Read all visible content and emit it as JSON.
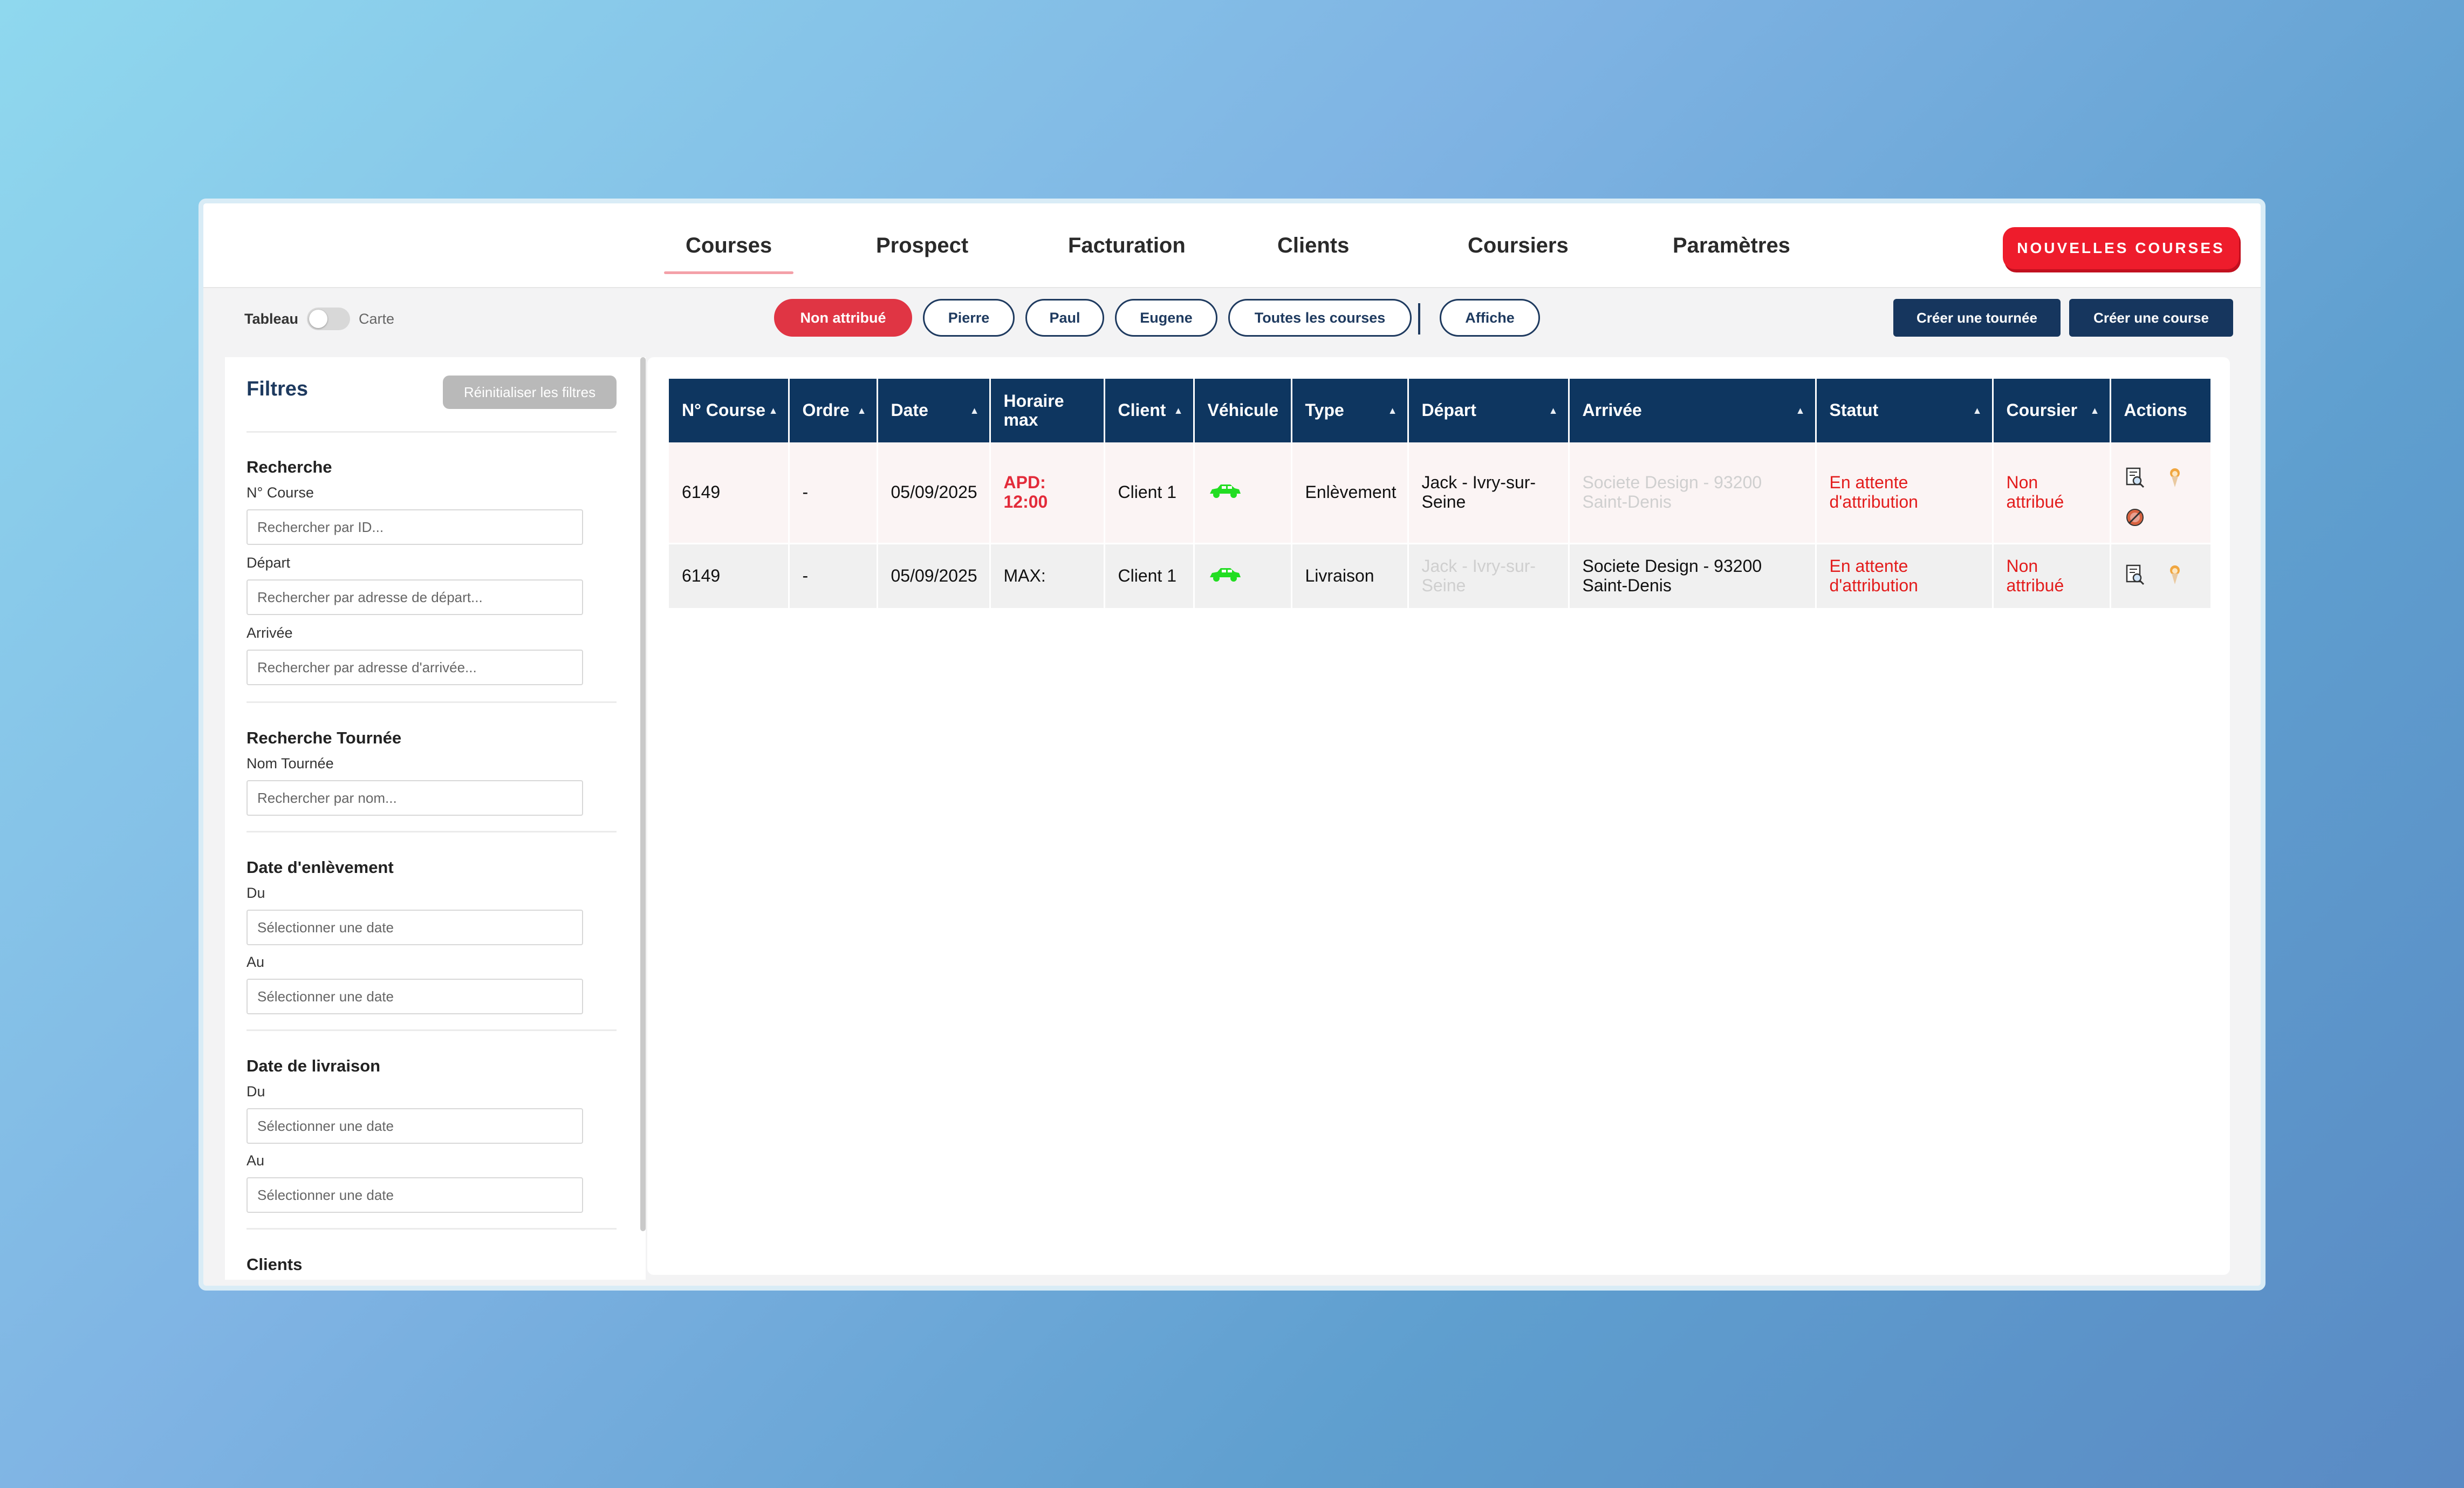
{
  "nav": {
    "tabs": [
      {
        "label": "Courses",
        "active": true
      },
      {
        "label": "Prospect"
      },
      {
        "label": "Facturation"
      },
      {
        "label": "Clients"
      },
      {
        "label": "Coursiers"
      },
      {
        "label": "Paramètres"
      }
    ],
    "new_button": "NOUVELLES COURSES"
  },
  "toolbar": {
    "view_toggle": {
      "left": "Tableau",
      "right": "Carte",
      "state": "Tableau"
    },
    "pills": [
      {
        "label": "Non attribué",
        "active": true
      },
      {
        "label": "Pierre"
      },
      {
        "label": "Paul"
      },
      {
        "label": "Eugene"
      },
      {
        "label": "Toutes les courses"
      },
      {
        "label": "Affiche"
      }
    ],
    "create_tour": "Créer une tournée",
    "create_course": "Créer une course"
  },
  "filters": {
    "title": "Filtres",
    "reset": "Réinitialiser les filtres",
    "search": {
      "title": "Recherche",
      "course_label": "N° Course",
      "course_placeholder": "Rechercher par ID...",
      "depart_label": "Départ",
      "depart_placeholder": "Rechercher par adresse de départ...",
      "arrivee_label": "Arrivée",
      "arrivee_placeholder": "Rechercher par adresse d'arrivée..."
    },
    "tour": {
      "title": "Recherche Tournée",
      "name_label": "Nom Tournée",
      "name_placeholder": "Rechercher par nom..."
    },
    "pickup_date": {
      "title": "Date d'enlèvement",
      "from_label": "Du",
      "to_label": "Au",
      "placeholder": "Sélectionner une date"
    },
    "delivery_date": {
      "title": "Date de livraison",
      "from_label": "Du",
      "to_label": "Au",
      "placeholder": "Sélectionner une date"
    },
    "clients_title": "Clients"
  },
  "table": {
    "headers": {
      "course": "N° Course",
      "ordre": "Ordre",
      "date": "Date",
      "horaire": "Horaire max",
      "client": "Client",
      "vehicule": "Véhicule",
      "type": "Type",
      "depart": "Départ",
      "arrivee": "Arrivée",
      "statut": "Statut",
      "coursier": "Coursier",
      "actions": "Actions"
    },
    "rows": [
      {
        "course": "6149",
        "ordre": "-",
        "date": "05/09/2025",
        "horaire": "APD: 12:00",
        "client": "Client 1",
        "vehicule": "car-icon",
        "type": "Enlèvement",
        "depart": "Jack - Ivry-sur-Seine",
        "arrivee": "Societe Design - 93200 Saint-Denis",
        "statut": "En attente d'attribution",
        "coursier": "Non attribué"
      },
      {
        "course": "6149",
        "ordre": "-",
        "date": "05/09/2025",
        "horaire": "MAX:",
        "client": "Client 1",
        "vehicule": "car-icon",
        "type": "Livraison",
        "depart": "Jack - Ivry-sur-Seine",
        "arrivee": "Societe Design - 93200 Saint-Denis",
        "statut": "En attente d'attribution",
        "coursier": "Non attribué"
      }
    ]
  },
  "colors": {
    "accent_red": "#ee1c2c",
    "navy": "#0e3660",
    "status_red": "#e31d1d",
    "vehicle_green": "#22dd22"
  }
}
